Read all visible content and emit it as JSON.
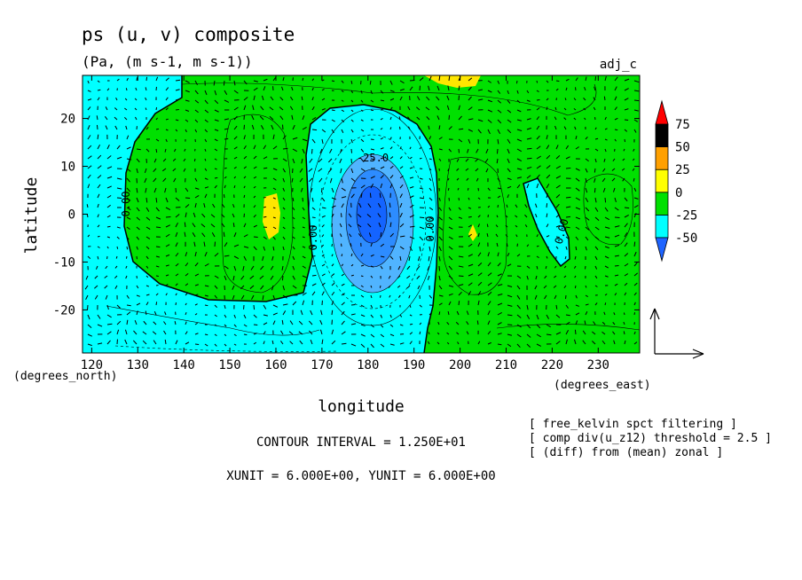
{
  "chart_data": {
    "type": "contour",
    "title": "ps (u, v) composite",
    "subtitle": "(Pa, (m s-1, m s-1))",
    "run_label": "adj_c",
    "xlabel": "longitude",
    "ylabel": "latitude",
    "x_unit_label": "(degrees_east)",
    "y_unit_label": "(degrees_north)",
    "xlim": [
      118,
      239
    ],
    "ylim": [
      -29,
      29
    ],
    "x_ticks": [
      120,
      130,
      140,
      150,
      160,
      170,
      180,
      190,
      200,
      210,
      220,
      230
    ],
    "x_tick_labels": [
      "120",
      "130",
      "140",
      "150",
      "160",
      "170",
      "180",
      "190",
      "200",
      "210",
      "220",
      "230"
    ],
    "y_ticks": [
      -20,
      -10,
      0,
      10,
      20
    ],
    "y_tick_labels": [
      "-20",
      "-10",
      "0",
      "10",
      "20"
    ],
    "colorbar": {
      "levels": [
        -50,
        -25,
        0,
        25,
        50,
        75
      ],
      "labels": [
        "-50",
        "-25",
        "0",
        "25",
        "50",
        "75"
      ],
      "colors": [
        "#1e64ff",
        "#00ffff",
        "#00e000",
        "#ffff00",
        "#ffa000",
        "#ff0000"
      ],
      "low_color": "#1e64ff",
      "high_color": "#ff0000"
    },
    "fill_colors": {
      "c_m50": "#1464ff",
      "c_m375": "#2d8cff",
      "c_m25": "#50b4ff",
      "c_m125": "#00ffff",
      "c_0": "#00e000",
      "c_pos": "#ffe600",
      "background": "#00ffff"
    },
    "contour_labels": [
      "0.00",
      "-25.0",
      "0.00",
      "0.00",
      "0.00"
    ],
    "contour_interval_text": "CONTOUR INTERVAL = 1.250E+01",
    "vector_unit_text": "XUNIT = 6.000E+00, YUNIT = 6.000E+00",
    "notes": [
      "[ free_kelvin spct filtering ]",
      "[ comp div(u_z12) threshold = 2.5 ]",
      "[ (diff) from (mean) zonal ]"
    ]
  }
}
